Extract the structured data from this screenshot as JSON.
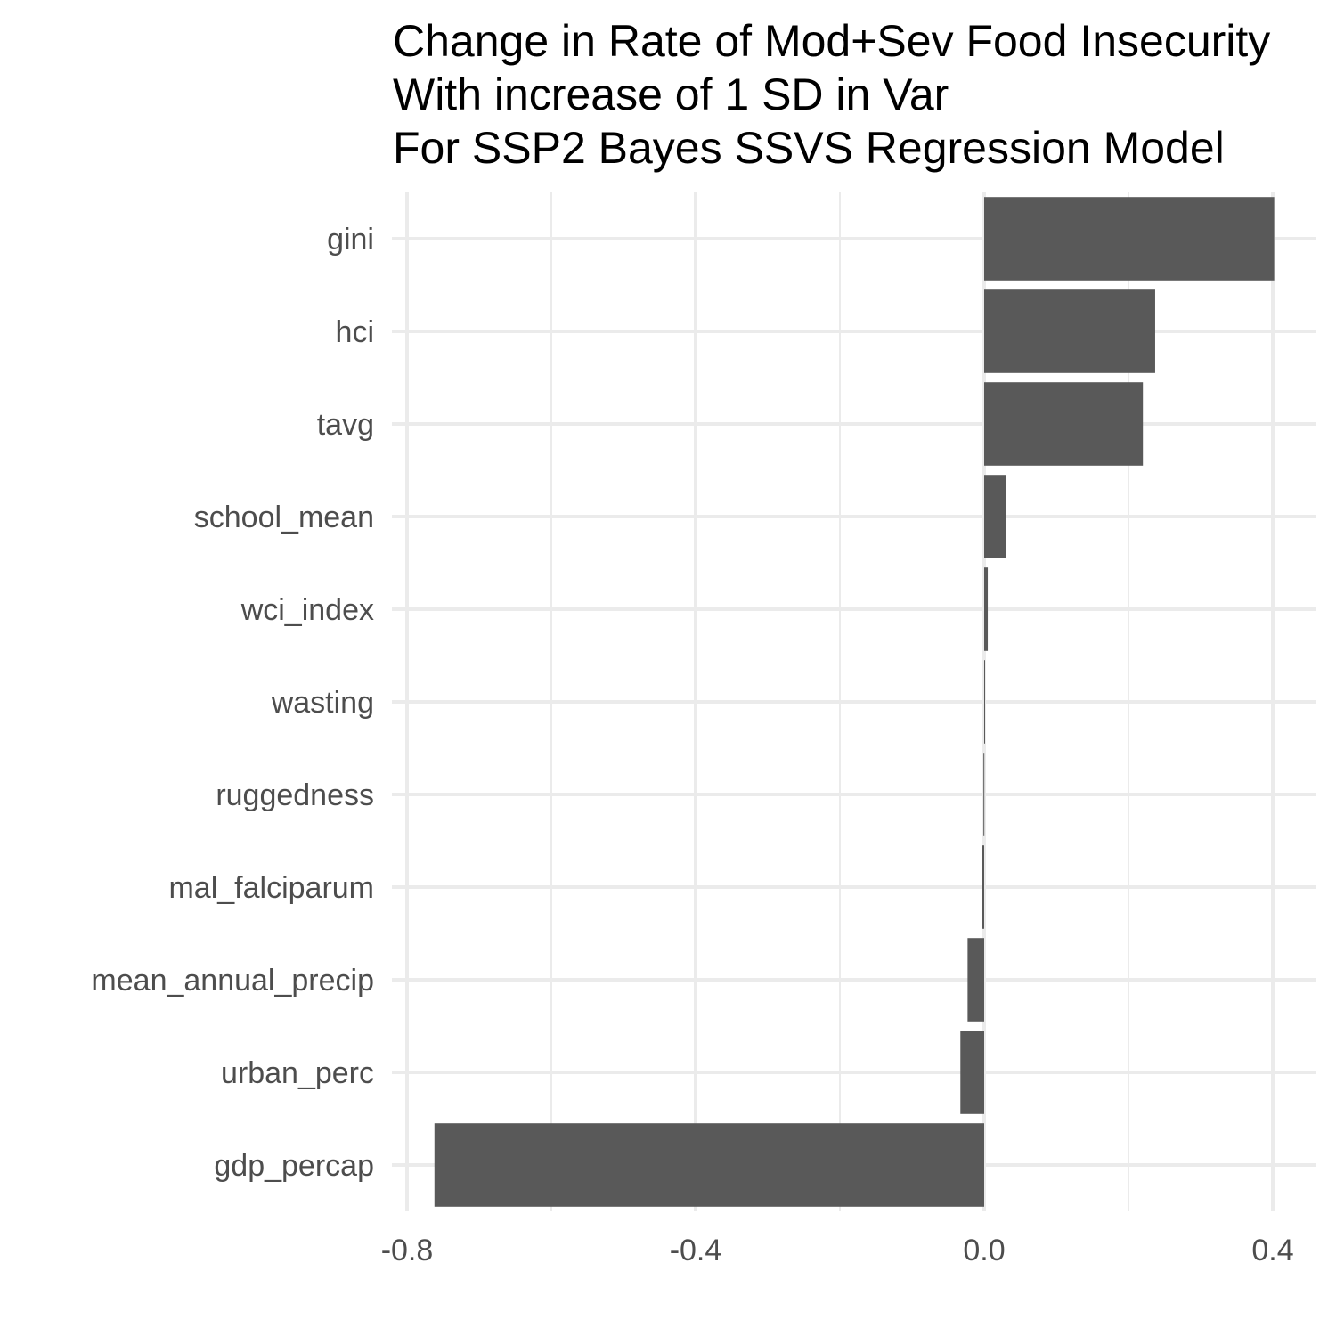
{
  "chart_data": {
    "type": "bar",
    "orientation": "horizontal",
    "title": [
      "Change in Rate of Mod+Sev Food Insecurity",
      "With increase of 1 SD in Var",
      "For SSP2 Bayes SSVS Regression Model"
    ],
    "xlabel": "",
    "ylabel": "",
    "categories": [
      "gini",
      "hci",
      "tavg",
      "school_mean",
      "wci_index",
      "wasting",
      "ruggedness",
      "mal_falciparum",
      "mean_annual_precip",
      "urban_perc",
      "gdp_percap"
    ],
    "values": [
      0.402,
      0.237,
      0.22,
      0.03,
      0.005,
      0.001,
      -0.001,
      -0.003,
      -0.023,
      -0.033,
      -0.762
    ],
    "xlim": [
      -0.8,
      0.45
    ],
    "x_ticks": [
      -0.8,
      -0.4,
      0.0,
      0.4
    ],
    "x_tick_labels": [
      "-0.8",
      "-0.4",
      "0.0",
      "0.4"
    ],
    "x_minor_ticks": [
      -0.6,
      -0.2,
      0.2
    ],
    "grid": true,
    "legend": "none",
    "bar_color": "#595959",
    "grid_color": "#ebebeb"
  }
}
